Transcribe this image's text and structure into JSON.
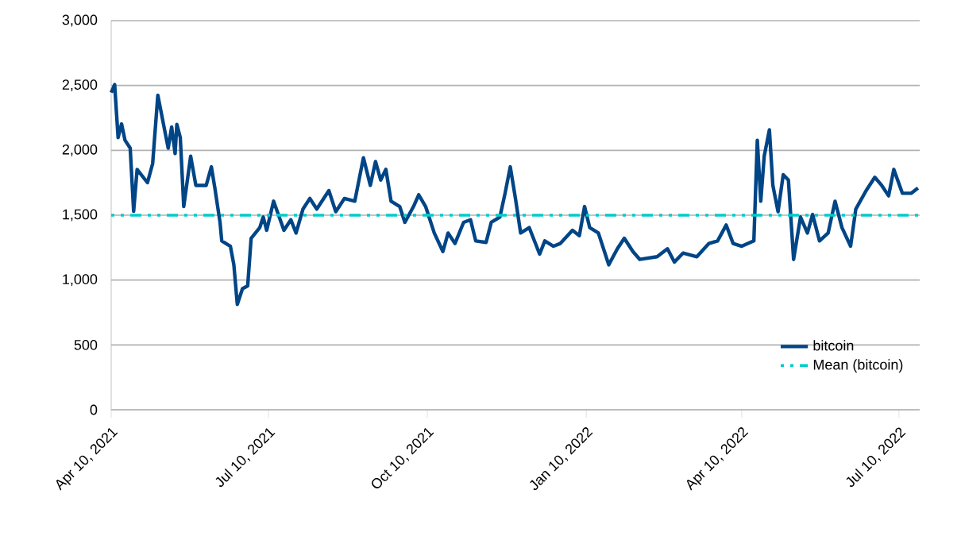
{
  "chart_data": {
    "type": "line",
    "x": [
      "2021-04-10",
      "2021-04-12",
      "2021-04-14",
      "2021-04-16",
      "2021-04-18",
      "2021-04-21",
      "2021-04-23",
      "2021-04-25",
      "2021-05-01",
      "2021-05-04",
      "2021-05-07",
      "2021-05-10",
      "2021-05-13",
      "2021-05-15",
      "2021-05-17",
      "2021-05-18",
      "2021-05-20",
      "2021-05-22",
      "2021-05-26",
      "2021-05-29",
      "2021-06-04",
      "2021-06-07",
      "2021-06-09",
      "2021-06-12",
      "2021-06-13",
      "2021-06-18",
      "2021-06-20",
      "2021-06-22",
      "2021-06-25",
      "2021-06-28",
      "2021-06-30",
      "2021-07-05",
      "2021-07-07",
      "2021-07-09",
      "2021-07-13",
      "2021-07-19",
      "2021-07-23",
      "2021-07-26",
      "2021-07-30",
      "2021-08-03",
      "2021-08-07",
      "2021-08-14",
      "2021-08-18",
      "2021-08-23",
      "2021-08-29",
      "2021-09-03",
      "2021-09-07",
      "2021-09-10",
      "2021-09-13",
      "2021-09-16",
      "2021-09-19",
      "2021-09-24",
      "2021-09-27",
      "2021-10-02",
      "2021-10-05",
      "2021-10-09",
      "2021-10-14",
      "2021-10-19",
      "2021-10-22",
      "2021-10-26",
      "2021-10-31",
      "2021-11-04",
      "2021-11-07",
      "2021-11-13",
      "2021-11-16",
      "2021-11-21",
      "2021-11-24",
      "2021-11-27",
      "2021-11-30",
      "2021-12-03",
      "2021-12-08",
      "2021-12-14",
      "2021-12-17",
      "2021-12-22",
      "2021-12-26",
      "2022-01-02",
      "2022-01-06",
      "2022-01-09",
      "2022-01-12",
      "2022-01-17",
      "2022-01-23",
      "2022-01-28",
      "2022-02-01",
      "2022-02-06",
      "2022-02-10",
      "2022-02-20",
      "2022-02-26",
      "2022-03-02",
      "2022-03-07",
      "2022-03-15",
      "2022-03-22",
      "2022-03-27",
      "2022-04-01",
      "2022-04-05",
      "2022-04-10",
      "2022-04-17",
      "2022-04-19",
      "2022-04-21",
      "2022-04-23",
      "2022-04-26",
      "2022-04-28",
      "2022-05-01",
      "2022-05-04",
      "2022-05-07",
      "2022-05-10",
      "2022-05-14",
      "2022-05-18",
      "2022-05-21",
      "2022-05-25",
      "2022-05-30",
      "2022-06-03",
      "2022-06-07",
      "2022-06-12",
      "2022-06-15",
      "2022-06-21",
      "2022-06-26",
      "2022-06-30",
      "2022-07-04",
      "2022-07-07",
      "2022-07-12",
      "2022-07-17",
      "2022-07-21"
    ],
    "series": [
      {
        "name": "bitcoin",
        "color": "#004586",
        "values": [
          2445,
          2507,
          2098,
          2204,
          2078,
          2017,
          1530,
          1853,
          1751,
          1898,
          2425,
          2220,
          2017,
          2180,
          1975,
          2200,
          2098,
          1567,
          1955,
          1730,
          1730,
          1873,
          1710,
          1445,
          1302,
          1261,
          1118,
          812,
          934,
          955,
          1322,
          1404,
          1486,
          1384,
          1608,
          1384,
          1465,
          1363,
          1547,
          1629,
          1547,
          1690,
          1527,
          1629,
          1608,
          1943,
          1730,
          1914,
          1771,
          1853,
          1608,
          1567,
          1445,
          1567,
          1657,
          1567,
          1363,
          1220,
          1363,
          1282,
          1445,
          1465,
          1302,
          1290,
          1445,
          1486,
          1669,
          1873,
          1629,
          1363,
          1404,
          1200,
          1302,
          1261,
          1282,
          1384,
          1343,
          1567,
          1404,
          1363,
          1118,
          1241,
          1322,
          1220,
          1159,
          1180,
          1241,
          1139,
          1208,
          1180,
          1282,
          1302,
          1424,
          1282,
          1261,
          1302,
          2078,
          1608,
          1955,
          2159,
          1730,
          1527,
          1812,
          1771,
          1159,
          1486,
          1363,
          1506,
          1302,
          1363,
          1608,
          1404,
          1261,
          1547,
          1690,
          1792,
          1730,
          1649,
          1853,
          1669,
          1669,
          1710
        ]
      }
    ],
    "xlim": [
      "2021-04-10",
      "2022-07-22"
    ],
    "xticks": [
      {
        "value": "2021-04-10",
        "label": "Apr 10, 2021"
      },
      {
        "value": "2021-07-10",
        "label": "Jul 10, 2021"
      },
      {
        "value": "2021-10-10",
        "label": "Oct 10, 2021"
      },
      {
        "value": "2022-01-10",
        "label": "Jan 10, 2022"
      },
      {
        "value": "2022-04-10",
        "label": "Apr 10, 2022"
      },
      {
        "value": "2022-07-10",
        "label": "Jul 10, 2022"
      }
    ],
    "ylim": [
      0,
      3000
    ],
    "yticks": [
      0,
      500,
      {
        "value": 1000,
        "label": "1,000"
      },
      {
        "value": 1500,
        "label": "1,500"
      },
      {
        "value": 2000,
        "label": "2,000"
      },
      {
        "value": 2500,
        "label": "2,500"
      },
      {
        "value": 3000,
        "label": "3,000"
      }
    ],
    "ref_lines": [
      {
        "axis": "y",
        "value": 1500,
        "label": "Mean (bitcoin)",
        "color": "#00cccc",
        "line_style": "dashed"
      }
    ],
    "grid": "y",
    "legend": "bottom right",
    "marker": "none",
    "line_style": "solid"
  }
}
